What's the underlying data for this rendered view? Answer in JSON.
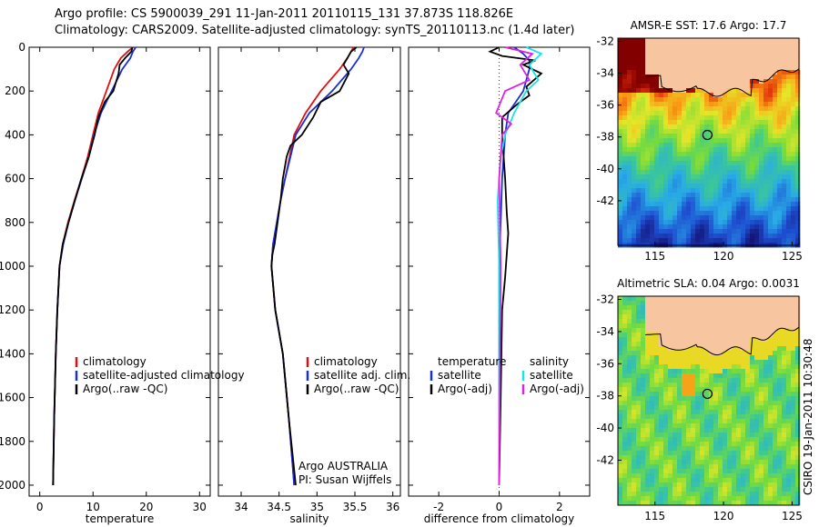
{
  "header": {
    "line1": "Argo profile: CS 5900039_291 11-Jan-2011 20110115_131 37.873S 118.826E",
    "line2": "Climatology: CARS2009. Satellite-adjusted climatology: synTS_20110113.nc (1.4d later)"
  },
  "colors": {
    "climatology": "#e01010",
    "satellite": "#1a2fd6",
    "argo": "#000000",
    "sat_diff": "#19e5e5",
    "argo_adj_diff": "#e020e0",
    "land": "#f7c59f"
  },
  "chart_data": [
    {
      "type": "line",
      "id": "temperature",
      "xlabel": "temperature",
      "ylabel": "",
      "xlim": [
        -2,
        32
      ],
      "ylim": [
        2050,
        0
      ],
      "xticks": [
        0,
        10,
        20,
        30
      ],
      "yticks": [
        0,
        200,
        400,
        600,
        800,
        1000,
        1200,
        1400,
        1600,
        1800,
        2000
      ],
      "legend": [
        "climatology",
        "satellite-adjusted climatology",
        "Argo(..raw -QC)"
      ],
      "series": [
        {
          "name": "climatology",
          "color": "#e01010",
          "x": [
            17.5,
            16.5,
            15.2,
            14.0,
            12.5,
            11.0,
            10.0,
            9.0,
            7.8,
            6.5,
            5.3,
            4.3,
            3.7,
            3.3,
            3.0,
            2.7,
            2.5
          ],
          "y": [
            0,
            20,
            50,
            100,
            200,
            300,
            400,
            500,
            600,
            700,
            800,
            900,
            1000,
            1200,
            1400,
            1700,
            2000
          ]
        },
        {
          "name": "satellite-adjusted climatology",
          "color": "#1a2fd6",
          "x": [
            18.0,
            17.5,
            17.0,
            15.5,
            13.5,
            11.5,
            10.2,
            9.2,
            7.9,
            6.6,
            5.4,
            4.4,
            3.7,
            3.3,
            3.0,
            2.7,
            2.5
          ],
          "y": [
            0,
            20,
            50,
            100,
            200,
            300,
            400,
            500,
            600,
            700,
            800,
            900,
            1000,
            1200,
            1400,
            1700,
            2000
          ]
        },
        {
          "name": "Argo(..raw -QC)",
          "color": "#000000",
          "x": [
            17.4,
            17.2,
            16.0,
            15.0,
            14.8,
            13.8,
            12.2,
            11.0,
            10.3,
            9.2,
            7.8,
            6.6,
            5.4,
            4.3,
            3.7,
            3.3,
            3.0,
            2.7,
            2.5
          ],
          "y": [
            0,
            20,
            50,
            80,
            120,
            200,
            250,
            320,
            400,
            500,
            600,
            700,
            800,
            900,
            1000,
            1200,
            1400,
            1700,
            2000
          ]
        }
      ]
    },
    {
      "type": "line",
      "id": "salinity",
      "xlabel": "salinity",
      "ylabel": "",
      "xlim": [
        33.7,
        36.1
      ],
      "ylim": [
        2050,
        0
      ],
      "xticks": [
        34,
        34.5,
        35,
        35.5,
        36
      ],
      "legend": [
        "climatology",
        "satellite adj. clim.",
        "Argo(..raw -QC)"
      ],
      "annotation": [
        "Argo AUSTRALIA",
        "PI: Susan Wijffels"
      ],
      "series": [
        {
          "name": "climatology",
          "color": "#e01010",
          "x": [
            35.48,
            35.45,
            35.4,
            35.3,
            35.05,
            34.85,
            34.7,
            34.64,
            34.58,
            34.52,
            34.47,
            34.42,
            34.4,
            34.45,
            34.55,
            34.63,
            34.7
          ],
          "y": [
            0,
            20,
            50,
            100,
            200,
            300,
            400,
            500,
            600,
            700,
            800,
            900,
            1000,
            1200,
            1400,
            1700,
            2000
          ]
        },
        {
          "name": "satellite adj. clim.",
          "color": "#1a2fd6",
          "x": [
            35.62,
            35.6,
            35.55,
            35.45,
            35.2,
            34.9,
            34.72,
            34.65,
            34.58,
            34.52,
            34.47,
            34.42,
            34.4,
            34.45,
            34.55,
            34.63,
            34.7
          ],
          "y": [
            0,
            20,
            50,
            100,
            200,
            300,
            400,
            500,
            600,
            700,
            800,
            900,
            1000,
            1200,
            1400,
            1700,
            2000
          ]
        },
        {
          "name": "Argo(..raw -QC)",
          "color": "#000000",
          "x": [
            35.52,
            35.45,
            35.4,
            35.35,
            35.42,
            35.3,
            35.05,
            34.95,
            34.8,
            34.65,
            34.6,
            34.55,
            34.52,
            34.48,
            34.44,
            34.41,
            34.4,
            34.45,
            34.55,
            34.63,
            34.72
          ],
          "y": [
            0,
            20,
            50,
            80,
            120,
            200,
            250,
            320,
            400,
            450,
            500,
            600,
            700,
            800,
            900,
            950,
            1000,
            1200,
            1400,
            1700,
            2000
          ]
        }
      ]
    },
    {
      "type": "line",
      "id": "difference",
      "xlabel": "difference from climatology",
      "ylabel": "",
      "xlim": [
        -3,
        3
      ],
      "ylim": [
        2050,
        0
      ],
      "xticks": [
        -2,
        0,
        2
      ],
      "legend_temperature": [
        "temperature",
        "satellite",
        "Argo(-adj)"
      ],
      "legend_salinity": [
        "salinity",
        "satellite",
        "Argo(-adj)"
      ],
      "series": [
        {
          "name": "temperature satellite",
          "color": "#1a2fd6",
          "x": [
            0.5,
            0.8,
            1.0,
            1.0,
            0.8,
            0.3,
            0.2,
            0.1,
            0.05,
            0.0,
            0.0,
            0.0,
            0.0
          ],
          "y": [
            0,
            30,
            60,
            100,
            200,
            300,
            400,
            600,
            800,
            1000,
            1300,
            1600,
            2000
          ]
        },
        {
          "name": "temperature Argo(-adj)",
          "color": "#000000",
          "x": [
            0.0,
            -0.3,
            0.1,
            1.2,
            0.8,
            1.4,
            0.9,
            1.0,
            0.6,
            0.1,
            0.1,
            0.2,
            0.25,
            0.3,
            0.25,
            0.2,
            0.1,
            0.05,
            0.0
          ],
          "y": [
            0,
            20,
            40,
            60,
            80,
            120,
            180,
            220,
            260,
            320,
            400,
            600,
            750,
            850,
            950,
            1050,
            1200,
            1600,
            2000
          ]
        },
        {
          "name": "salinity satellite",
          "color": "#19e5e5",
          "x": [
            0.9,
            1.4,
            1.0,
            1.3,
            0.9,
            0.5,
            0.2,
            0.05,
            -0.05,
            0.0,
            0.0,
            0.0
          ],
          "y": [
            0,
            30,
            80,
            150,
            200,
            300,
            400,
            500,
            700,
            1000,
            1500,
            2000
          ]
        },
        {
          "name": "salinity Argo(-adj)",
          "color": "#e020e0",
          "x": [
            0.2,
            1.1,
            0.7,
            1.0,
            0.2,
            -0.1,
            0.4,
            0.1,
            0.0,
            0.05,
            0.0
          ],
          "y": [
            0,
            30,
            80,
            150,
            200,
            300,
            350,
            400,
            600,
            1000,
            2000
          ]
        }
      ]
    },
    {
      "type": "heatmap",
      "id": "sst-map",
      "title": "AMSR-E SST: 17.6  Argo: 17.7",
      "xticks": [
        115,
        120,
        125
      ],
      "yticks": [
        -32,
        -34,
        -36,
        -38,
        -40,
        -42
      ],
      "xlim": [
        112.3,
        125.5
      ],
      "ylim": [
        -44.8,
        -31.8
      ],
      "marker": {
        "lon": 118.826,
        "lat": -37.873
      }
    },
    {
      "type": "heatmap",
      "id": "sla-map",
      "title": "Altimetric SLA: 0.04  Argo: 0.0031",
      "xticks": [
        115,
        120,
        125
      ],
      "yticks": [
        -32,
        -34,
        -36,
        -38,
        -40,
        -42
      ],
      "xlim": [
        112.3,
        125.5
      ],
      "ylim": [
        -44.8,
        -31.8
      ],
      "marker": {
        "lon": 118.826,
        "lat": -37.873
      }
    }
  ],
  "side_label": "CSIRO 19-Jan-2011 10:30:48"
}
